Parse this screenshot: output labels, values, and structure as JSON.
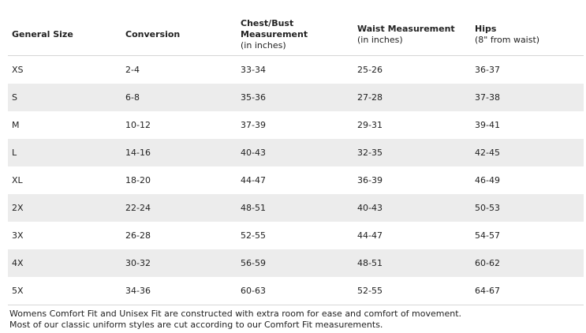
{
  "table": {
    "headers": [
      {
        "bold": "General Size",
        "sub": ""
      },
      {
        "bold": "Conversion",
        "sub": ""
      },
      {
        "bold": "Chest/Bust Measurement",
        "sub": "(in inches)"
      },
      {
        "bold": "Waist Measurement",
        "sub": "(in inches)"
      },
      {
        "bold": "Hips",
        "sub": "(8\" from waist)"
      }
    ],
    "rows": [
      [
        "XS",
        "2-4",
        "33-34",
        "25-26",
        "36-37"
      ],
      [
        "S",
        "6-8",
        "35-36",
        "27-28",
        "37-38"
      ],
      [
        "M",
        "10-12",
        "37-39",
        "29-31",
        "39-41"
      ],
      [
        "L",
        "14-16",
        "40-43",
        "32-35",
        "42-45"
      ],
      [
        "XL",
        "18-20",
        "44-47",
        "36-39",
        "46-49"
      ],
      [
        "2X",
        "22-24",
        "48-51",
        "40-43",
        "50-53"
      ],
      [
        "3X",
        "26-28",
        "52-55",
        "44-47",
        "54-57"
      ],
      [
        "4X",
        "30-32",
        "56-59",
        "48-51",
        "60-62"
      ],
      [
        "5X",
        "34-36",
        "60-63",
        "52-55",
        "64-67"
      ]
    ]
  },
  "footnotes": [
    "Womens Comfort Fit and Unisex Fit are constructed with extra room for ease and comfort of movement.",
    "Most of our classic uniform styles are cut according to our Comfort Fit measurements."
  ],
  "colors": {
    "alt_row_bg": "#ececec",
    "rule": "#d6d6d6",
    "text": "#222222"
  }
}
